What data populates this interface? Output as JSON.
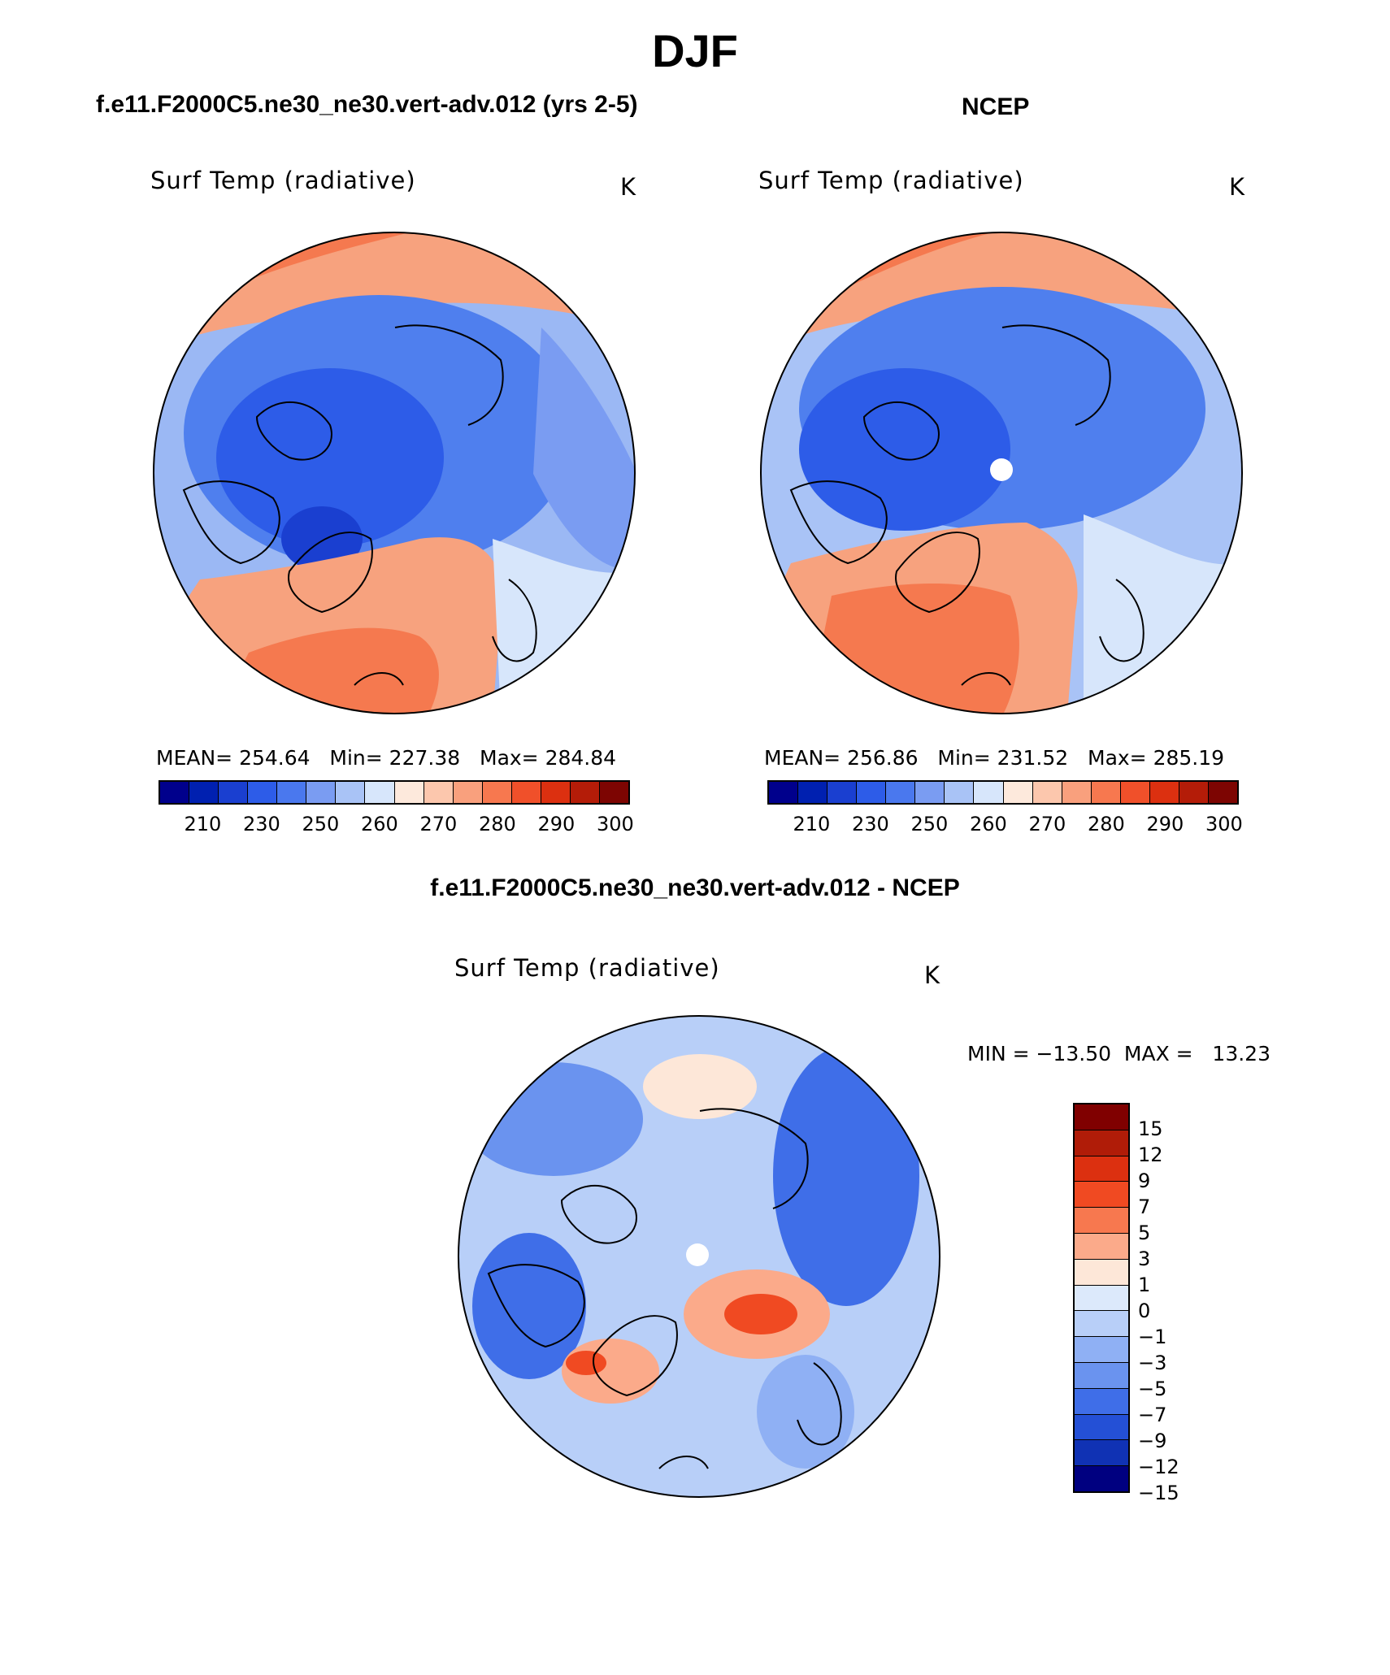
{
  "title": "DJF",
  "panels": [
    {
      "header": "f.e11.F2000C5.ne30_ne30.vert-adv.012 (yrs 2-5)",
      "variable": "Surf Temp (radiative)",
      "units": "K",
      "mean_label": "MEAN=",
      "mean": "254.64",
      "min_label": "Min=",
      "min": "227.38",
      "max_label": "Max=",
      "max": "284.84"
    },
    {
      "header": "NCEP",
      "variable": "Surf Temp (radiative)",
      "units": "K",
      "mean_label": "MEAN=",
      "mean": "256.86",
      "min_label": "Min=",
      "min": "231.52",
      "max_label": "Max=",
      "max": "285.19"
    }
  ],
  "diff": {
    "header": "f.e11.F2000C5.ne30_ne30.vert-adv.012 - NCEP",
    "variable": "Surf Temp (radiative)",
    "units": "K",
    "minmax_text": "MIN = −13.50  MAX =   13.23"
  },
  "abs_colorbar": {
    "colors": [
      "#00008c",
      "#0020b0",
      "#1a3fd0",
      "#2d5ce8",
      "#4a78ee",
      "#7a9cf2",
      "#a9c3f6",
      "#d7e6fb",
      "#fde9dc",
      "#fcc7ad",
      "#f9a07d",
      "#f7784f",
      "#f0502a",
      "#dc3010",
      "#b41c08",
      "#7d0502"
    ],
    "tick_labels": [
      "210",
      "230",
      "250",
      "260",
      "270",
      "280",
      "290",
      "300"
    ]
  },
  "diff_colorbar": {
    "colors": [
      "#800000",
      "#b01c08",
      "#dc3010",
      "#f04a22",
      "#f7784f",
      "#fbaa8a",
      "#fde7d8",
      "#dce9fb",
      "#b8cff8",
      "#8fb0f4",
      "#6a93ef",
      "#3f6ee8",
      "#2450d6",
      "#1032b4",
      "#000080"
    ],
    "tick_labels": [
      "15",
      "12",
      "9",
      "7",
      "5",
      "3",
      "1",
      "0",
      "−1",
      "−3",
      "−5",
      "−7",
      "−9",
      "−12",
      "−15"
    ]
  },
  "colors": {
    "ocean_cold": "#3f6fe8",
    "ocean_warm": "#f7895f",
    "deep_cold": "#2350d6",
    "neutral_light": "#d7e6fb",
    "coast": "#000000",
    "pole_marker": "#ffffff"
  }
}
